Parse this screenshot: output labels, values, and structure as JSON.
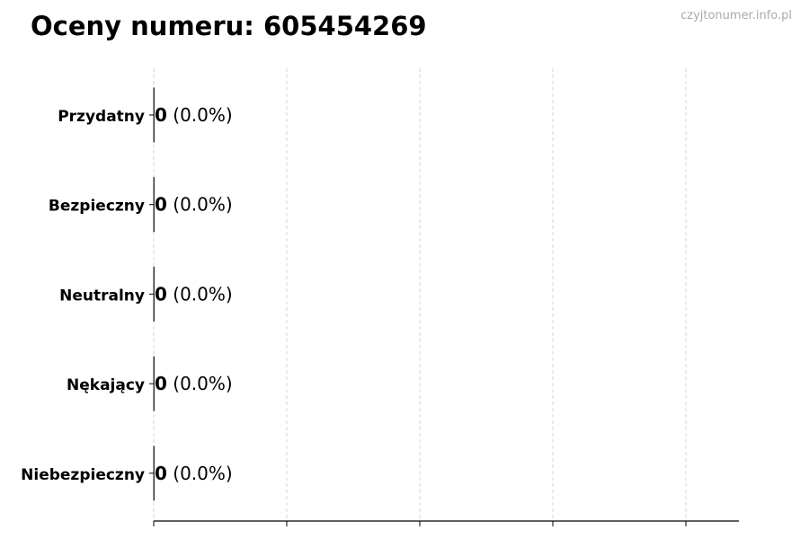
{
  "title": "Oceny numeru: 605454269",
  "watermark": "czyjtonumer.info.pl",
  "chart_data": {
    "type": "bar",
    "orientation": "horizontal",
    "categories": [
      "Przydatny",
      "Bezpieczny",
      "Neutralny",
      "Nękający",
      "Niebezpieczny"
    ],
    "values": [
      0,
      0,
      0,
      0,
      0
    ],
    "data_labels": [
      {
        "count": "0",
        "percent": "(0.0%)"
      },
      {
        "count": "0",
        "percent": "(0.0%)"
      },
      {
        "count": "0",
        "percent": "(0.0%)"
      },
      {
        "count": "0",
        "percent": "(0.0%)"
      },
      {
        "count": "0",
        "percent": "(0.0%)"
      }
    ],
    "xlabel": "",
    "ylabel": "",
    "x_tick_count": 5,
    "x_tick_labels": [],
    "grid": "vertical dashed",
    "bar_edge_color": "#333333"
  }
}
